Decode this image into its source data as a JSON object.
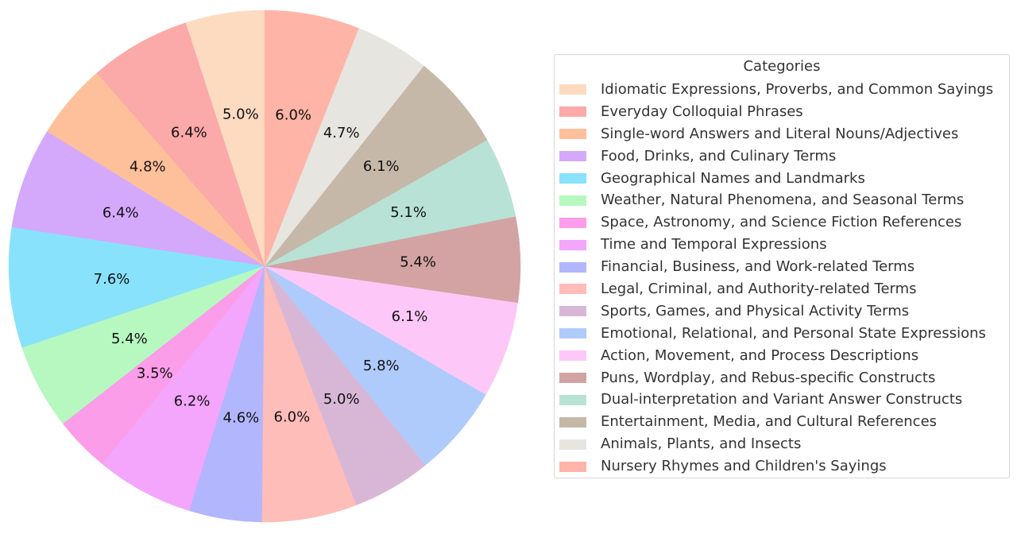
{
  "chart_data": {
    "type": "pie",
    "title": "",
    "legend_title": "Categories",
    "legend_position": "right",
    "start_angle_deg": 90,
    "direction": "counterclockwise",
    "label_format": "percent_1_decimal",
    "slices": [
      {
        "label": "Idiomatic Expressions, Proverbs, and Common Sayings",
        "value": 5.0,
        "display": "5.0%",
        "color": "#FDDBC0"
      },
      {
        "label": "Everyday Colloquial Phrases",
        "value": 6.4,
        "display": "6.4%",
        "color": "#FCA9A9"
      },
      {
        "label": "Single-word Answers and Literal Nouns/Adjectives",
        "value": 4.8,
        "display": "4.8%",
        "color": "#FEC09B"
      },
      {
        "label": "Food, Drinks, and Culinary Terms",
        "value": 6.4,
        "display": "6.4%",
        "color": "#D4A9FB"
      },
      {
        "label": "Geographical Names and Landmarks",
        "value": 7.6,
        "display": "7.6%",
        "color": "#88E2FC"
      },
      {
        "label": "Weather, Natural Phenomena, and Seasonal Terms",
        "value": 5.4,
        "display": "5.4%",
        "color": "#B6F8C0"
      },
      {
        "label": "Space, Astronomy, and Science Fiction References",
        "value": 3.5,
        "display": "3.5%",
        "color": "#FB9DE8"
      },
      {
        "label": "Time and Temporal Expressions",
        "value": 6.2,
        "display": "6.2%",
        "color": "#F3A6FC"
      },
      {
        "label": "Financial, Business, and Work-related Terms",
        "value": 4.6,
        "display": "4.6%",
        "color": "#B2B6FC"
      },
      {
        "label": "Legal, Criminal, and Authority-related Terms",
        "value": 6.0,
        "display": "6.0%",
        "color": "#FEBDB8"
      },
      {
        "label": "Sports, Games, and Physical Activity Terms",
        "value": 5.0,
        "display": "5.0%",
        "color": "#D8B7D6"
      },
      {
        "label": "Emotional, Relational, and Personal State Expressions",
        "value": 5.8,
        "display": "5.8%",
        "color": "#AFCBFC"
      },
      {
        "label": "Action, Movement, and Process Descriptions",
        "value": 6.1,
        "display": "6.1%",
        "color": "#FDC8F8"
      },
      {
        "label": "Puns, Wordplay, and Rebus-specific Constructs",
        "value": 5.4,
        "display": "5.4%",
        "color": "#D3A3A3"
      },
      {
        "label": "Dual-interpretation and Variant Answer Constructs",
        "value": 5.1,
        "display": "5.1%",
        "color": "#B7E2D5"
      },
      {
        "label": "Entertainment, Media, and Cultural References",
        "value": 6.1,
        "display": "6.1%",
        "color": "#C6B8A8"
      },
      {
        "label": "Animals, Plants, and Insects",
        "value": 4.7,
        "display": "4.7%",
        "color": "#E6E5E0"
      },
      {
        "label": "Nursery Rhymes and Children's Sayings",
        "value": 6.0,
        "display": "6.0%",
        "color": "#FEB4A6"
      }
    ]
  }
}
